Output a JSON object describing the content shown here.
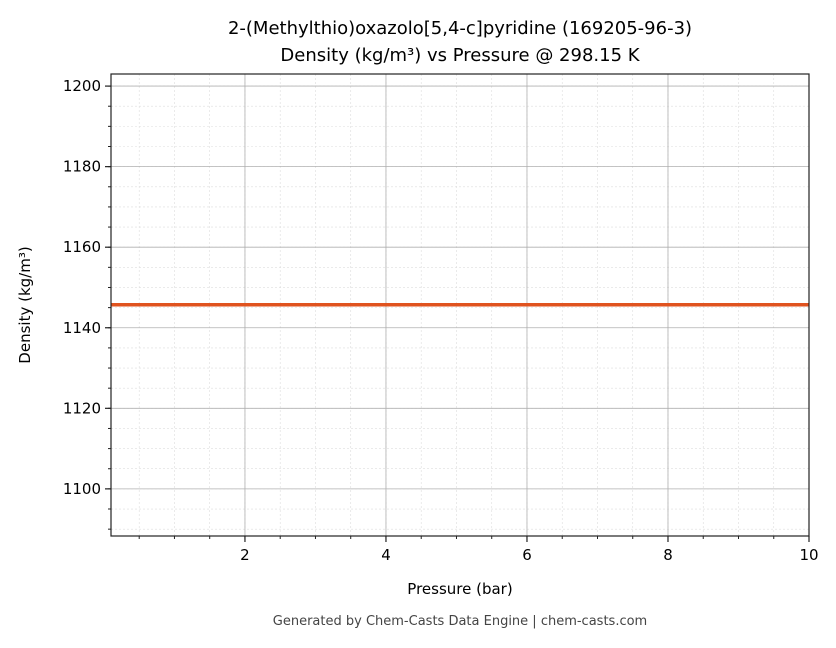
{
  "chart_data": {
    "type": "line",
    "title": "2-(Methylthio)oxazolo[5,4-c]pyridine (169205-96-3)",
    "subtitle": "Density (kg/m³) vs Pressure @ 298.15 K",
    "xlabel": "Pressure (bar)",
    "ylabel": "Density (kg/m³)",
    "xlim": [
      0.1,
      10
    ],
    "ylim": [
      1088.3,
      1203
    ],
    "xticks": [
      2,
      4,
      6,
      8,
      10
    ],
    "yticks": [
      1100,
      1120,
      1140,
      1160,
      1180,
      1200
    ],
    "x_minor_step": 0.5,
    "y_minor_step": 5,
    "grid": true,
    "series": [
      {
        "color": "#E0531F",
        "x": [
          0.1,
          10
        ],
        "y": [
          1145.7,
          1145.7
        ]
      }
    ]
  },
  "footer": "Generated by Chem-Casts Data Engine | chem-casts.com"
}
